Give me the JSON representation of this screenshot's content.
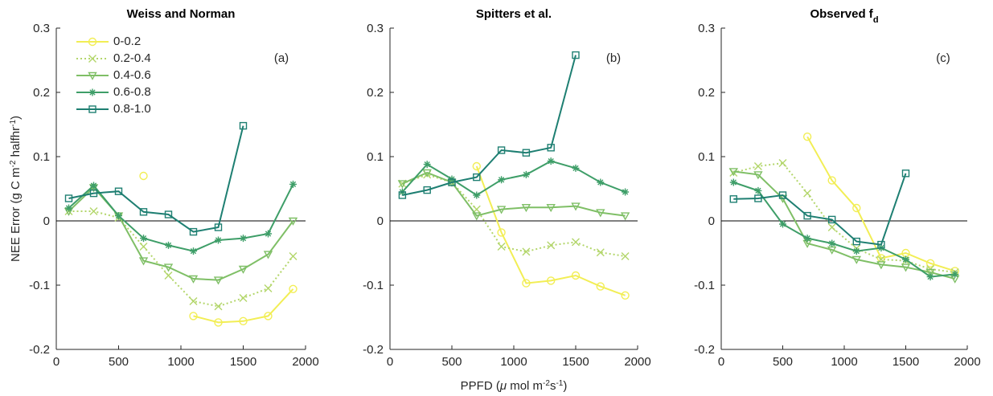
{
  "chart_data": [
    {
      "type": "line",
      "title": "Weiss and Norman",
      "panel_label": "(a)",
      "ylabel": [
        {
          "text": "NEE Error (g C m"
        },
        {
          "text": "-2",
          "sup": true
        },
        {
          "text": " halfhr"
        },
        {
          "text": "-1",
          "sup": true
        },
        {
          "text": ")"
        }
      ],
      "x": [
        100,
        300,
        500,
        700,
        900,
        1100,
        1300,
        1500,
        1700,
        1900
      ],
      "xlim": [
        0,
        2000
      ],
      "xticks": [
        0,
        500,
        1000,
        1500,
        2000
      ],
      "ylim": [
        -0.2,
        0.3
      ],
      "yticks": [
        -0.2,
        -0.1,
        0,
        0.1,
        0.2,
        0.3
      ],
      "hline": 0,
      "legend": "upper left",
      "series": [
        {
          "name": "0-0.2",
          "color": "#f2ee55",
          "marker": "circle",
          "dash": "solid",
          "values": [
            null,
            null,
            null,
            0.07,
            null,
            -0.148,
            -0.158,
            -0.156,
            -0.148,
            -0.106
          ]
        },
        {
          "name": "0.2-0.4",
          "color": "#b3d66b",
          "marker": "x",
          "dash": "dotted",
          "values": [
            0.015,
            0.015,
            0.005,
            -0.04,
            -0.085,
            -0.125,
            -0.133,
            -0.12,
            -0.105,
            -0.055
          ]
        },
        {
          "name": "0.4-0.6",
          "color": "#7fbf66",
          "marker": "triangle-down",
          "dash": "solid",
          "values": [
            0.015,
            0.052,
            0.008,
            -0.062,
            -0.072,
            -0.09,
            -0.092,
            -0.075,
            -0.052,
            0.0
          ]
        },
        {
          "name": "0.6-0.8",
          "color": "#3e9e68",
          "marker": "star",
          "dash": "solid",
          "values": [
            0.02,
            0.055,
            0.008,
            -0.027,
            -0.038,
            -0.047,
            -0.03,
            -0.027,
            -0.02,
            0.057
          ]
        },
        {
          "name": "0.8-1.0",
          "color": "#1e7f72",
          "marker": "square",
          "dash": "solid",
          "values": [
            0.035,
            0.043,
            0.046,
            0.014,
            0.01,
            -0.017,
            -0.01,
            0.148,
            null,
            null
          ]
        }
      ]
    },
    {
      "type": "line",
      "title": "Spitters et al.",
      "panel_label": "(b)",
      "xlabel": [
        {
          "text": "PPFD ("
        },
        {
          "text": "μ",
          "italic": true
        },
        {
          "text": " mol m"
        },
        {
          "text": "-2",
          "sup": true
        },
        {
          "text": "s"
        },
        {
          "text": "-1",
          "sup": true
        },
        {
          "text": ")"
        }
      ],
      "x": [
        100,
        300,
        500,
        700,
        900,
        1100,
        1300,
        1500,
        1700,
        1900
      ],
      "xlim": [
        0,
        2000
      ],
      "xticks": [
        0,
        500,
        1000,
        1500,
        2000
      ],
      "ylim": [
        -0.2,
        0.3
      ],
      "yticks": [
        -0.2,
        -0.1,
        0,
        0.1,
        0.2,
        0.3
      ],
      "hline": 0,
      "series": [
        {
          "color": "#f2ee55",
          "marker": "circle",
          "dash": "solid",
          "values": [
            null,
            null,
            null,
            0.085,
            -0.018,
            -0.097,
            -0.093,
            -0.085,
            -0.102,
            -0.116
          ]
        },
        {
          "color": "#b3d66b",
          "marker": "x",
          "dash": "dotted",
          "values": [
            0.058,
            0.072,
            0.06,
            0.018,
            -0.04,
            -0.048,
            -0.038,
            -0.033,
            -0.049,
            -0.055
          ]
        },
        {
          "color": "#7fbf66",
          "marker": "triangle-down",
          "dash": "solid",
          "values": [
            0.058,
            0.075,
            0.06,
            0.008,
            0.018,
            0.021,
            0.021,
            0.023,
            0.013,
            0.008
          ]
        },
        {
          "color": "#3e9e68",
          "marker": "star",
          "dash": "solid",
          "values": [
            0.045,
            0.088,
            0.065,
            0.04,
            0.064,
            0.072,
            0.093,
            0.082,
            0.06,
            0.045
          ]
        },
        {
          "color": "#1e7f72",
          "marker": "square",
          "dash": "solid",
          "values": [
            0.04,
            0.048,
            0.06,
            0.068,
            0.11,
            0.106,
            0.114,
            0.258,
            null,
            null
          ]
        }
      ]
    },
    {
      "type": "line",
      "title": "Observed f",
      "title_subscript": "d",
      "panel_label": "(c)",
      "x": [
        100,
        300,
        500,
        700,
        900,
        1100,
        1300,
        1500,
        1700,
        1900
      ],
      "xlim": [
        0,
        2000
      ],
      "xticks": [
        0,
        500,
        1000,
        1500,
        2000
      ],
      "ylim": [
        -0.2,
        0.3
      ],
      "yticks": [
        -0.2,
        -0.1,
        0,
        0.1,
        0.2,
        0.3
      ],
      "hline": 0,
      "series": [
        {
          "color": "#f2ee55",
          "marker": "circle",
          "dash": "solid",
          "values": [
            null,
            null,
            null,
            0.131,
            0.063,
            0.02,
            -0.058,
            -0.05,
            -0.066,
            -0.078
          ]
        },
        {
          "color": "#b3d66b",
          "marker": "x",
          "dash": "dotted",
          "values": [
            0.075,
            0.085,
            0.09,
            0.043,
            -0.01,
            -0.043,
            -0.06,
            -0.062,
            -0.075,
            -0.08
          ]
        },
        {
          "color": "#7fbf66",
          "marker": "triangle-down",
          "dash": "solid",
          "values": [
            0.077,
            0.072,
            0.035,
            -0.035,
            -0.045,
            -0.06,
            -0.068,
            -0.072,
            -0.08,
            -0.09
          ]
        },
        {
          "color": "#3e9e68",
          "marker": "star",
          "dash": "solid",
          "values": [
            0.06,
            0.047,
            -0.005,
            -0.027,
            -0.035,
            -0.047,
            -0.042,
            -0.06,
            -0.087,
            -0.083
          ]
        },
        {
          "color": "#1e7f72",
          "marker": "square",
          "dash": "solid",
          "values": [
            0.034,
            0.035,
            0.04,
            0.008,
            0.002,
            -0.032,
            -0.037,
            0.074,
            null,
            null
          ]
        }
      ]
    }
  ]
}
